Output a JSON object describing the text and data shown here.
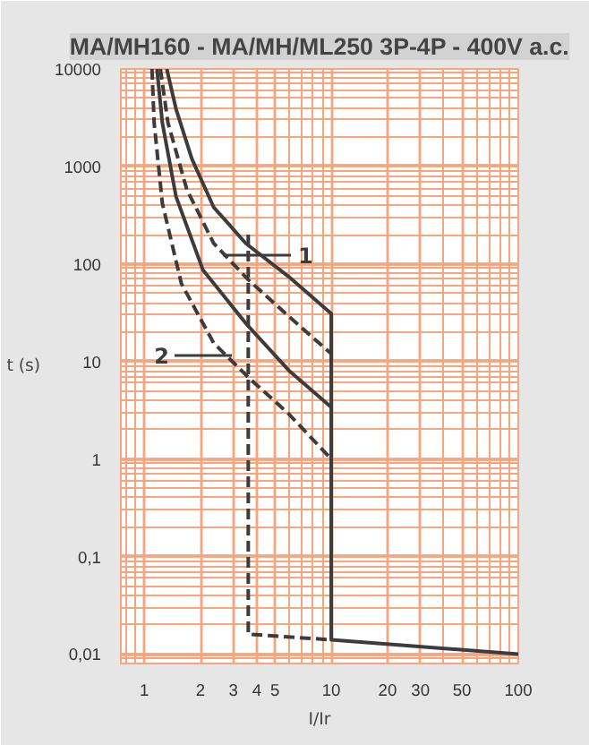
{
  "chart_data": {
    "type": "line",
    "title": "MA/MH160 - MA/MH/ML250 3P-4P - 400V a.c.",
    "xlabel": "I/Ir",
    "ylabel": "t (s)",
    "log": "xy",
    "grid": true,
    "xlim": [
      0.75,
      100
    ],
    "ylim": [
      0.008,
      10000
    ],
    "xticks": [
      1,
      2,
      3,
      4,
      5,
      10,
      20,
      30,
      50,
      100
    ],
    "yticks": [
      {
        "value": 0.01,
        "label": "0,01"
      },
      {
        "value": 0.1,
        "label": "0,1"
      },
      1,
      10,
      100,
      1000,
      10000
    ],
    "series": [
      {
        "color": "#3c3c3c",
        "line_style": "solid",
        "x": [
          1.32,
          1.48,
          1.8,
          2.35,
          3.49,
          5.93,
          10,
          10,
          100
        ],
        "values": [
          10000,
          3880,
          1190,
          383,
          163,
          74,
          31,
          0.014,
          0.01
        ]
      },
      {
        "color": "#3c3c3c",
        "line_style": "solid",
        "x": [
          1.17,
          1.25,
          1.48,
          2.06,
          3.5,
          5.93,
          10
        ],
        "values": [
          10000,
          2800,
          490,
          87,
          24.5,
          8.1,
          3.4
        ]
      },
      {
        "color": "#3c3c3c",
        "line_style": "dashed",
        "x": [
          1.22,
          1.34,
          1.69,
          2.35,
          3.6,
          5.93,
          10
        ],
        "values": [
          10000,
          2800,
          580,
          163,
          69,
          29,
          12
        ]
      },
      {
        "color": "#3c3c3c",
        "line_style": "dashed",
        "x": [
          1.1,
          1.13,
          1.25,
          1.58,
          2.35,
          3.6,
          5.93,
          10
        ],
        "values": [
          10000,
          2800,
          420,
          63,
          15.5,
          6.9,
          2.9,
          1
        ]
      },
      {
        "color": "#3c3c3c",
        "line_style": "dashed",
        "x": [
          3.6,
          3.6,
          10
        ],
        "values": [
          200,
          0.016,
          0.014
        ]
      }
    ],
    "annotations": [
      "1",
      "2"
    ]
  }
}
